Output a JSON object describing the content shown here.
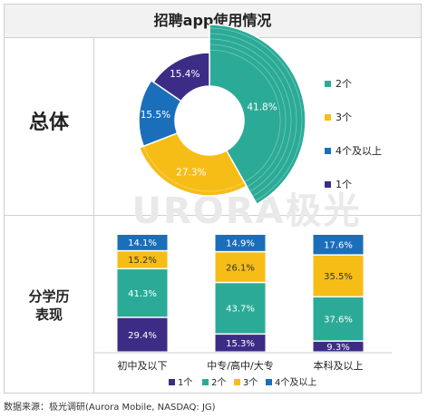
{
  "title": "招聘app使用情况",
  "row_labels": {
    "overall": "总体",
    "education_line1": "分学历",
    "education_line2": "表现"
  },
  "watermark": "URORA极光",
  "source": "数据来源：极光调研(Aurora Mobile, NASDAQ: JG)",
  "colors": {
    "2个": "#2bab97",
    "3个": "#f6bd16",
    "4个及以上": "#1b6fba",
    "1个": "#3d2c86"
  },
  "chart_data": [
    {
      "type": "pie",
      "labels": [
        "2个",
        "3个",
        "4个及以上",
        "1个"
      ],
      "values": [
        41.8,
        27.3,
        15.5,
        15.4
      ],
      "value_labels": [
        "41.8%",
        "27.3%",
        "15.5%",
        "15.4%"
      ],
      "legend": [
        "2个",
        "3个",
        "4个及以上",
        "1个"
      ],
      "legend_position": "right"
    },
    {
      "type": "bar",
      "stacked": true,
      "categories": [
        "初中及以下",
        "中专/高中/大专",
        "本科及以上"
      ],
      "series": [
        {
          "name": "1个",
          "values": [
            29.4,
            15.3,
            9.3
          ],
          "labels": [
            "29.4%",
            "15.3%",
            "9.3%"
          ]
        },
        {
          "name": "2个",
          "values": [
            41.3,
            43.7,
            37.6
          ],
          "labels": [
            "41.3%",
            "43.7%",
            "37.6%"
          ]
        },
        {
          "name": "3个",
          "values": [
            15.2,
            26.1,
            35.5
          ],
          "labels": [
            "15.2%",
            "26.1%",
            "35.5%"
          ]
        },
        {
          "name": "4个及以上",
          "values": [
            14.1,
            14.9,
            17.6
          ],
          "labels": [
            "14.1%",
            "14.9%",
            "17.6%"
          ]
        }
      ],
      "ylim": [
        0,
        100
      ],
      "legend_position": "bottom"
    }
  ]
}
